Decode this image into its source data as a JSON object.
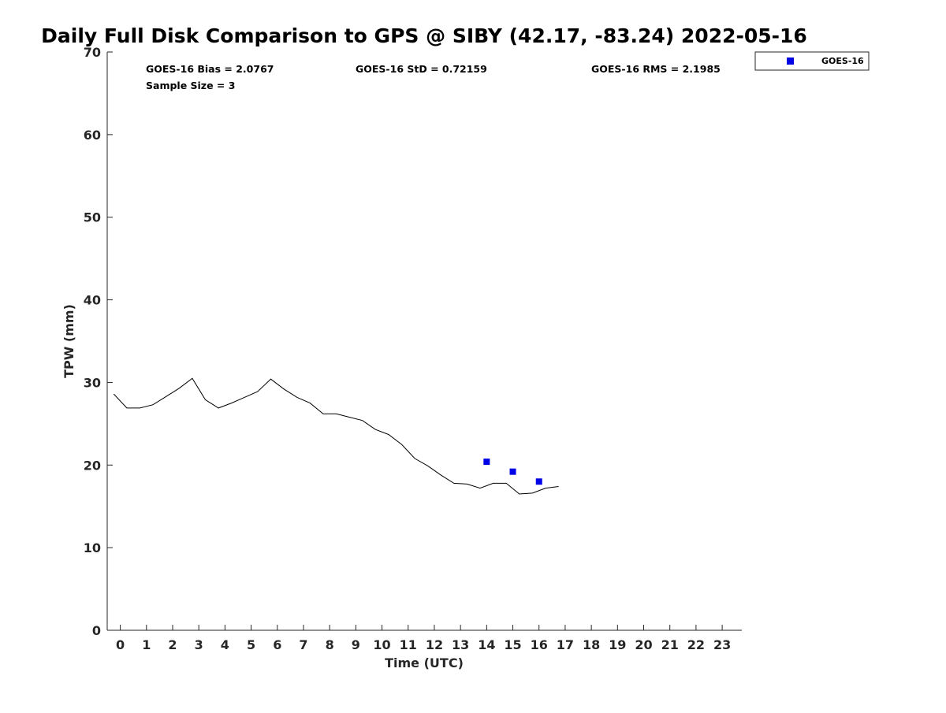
{
  "chart_data": {
    "type": "scatter",
    "title": "Daily Full Disk Comparison to GPS @ SIBY (42.17, -83.24) 2022-05-16",
    "xlabel": "Time (UTC)",
    "ylabel": "TPW (mm)",
    "xlim": [
      -0.5,
      23.75
    ],
    "ylim": [
      0,
      70
    ],
    "x_ticks": [
      0,
      1,
      2,
      3,
      4,
      5,
      6,
      7,
      8,
      9,
      10,
      11,
      12,
      13,
      14,
      15,
      16,
      17,
      18,
      19,
      20,
      21,
      22,
      23
    ],
    "y_ticks": [
      0,
      10,
      20,
      30,
      40,
      50,
      60,
      70
    ],
    "grid": false,
    "legend": {
      "placement": "top-right",
      "entries": [
        "GOES-16"
      ]
    },
    "annotations": [
      "GOES-16 Bias = 2.0767",
      "GOES-16 StD = 0.72159",
      "GOES-16 RMS = 2.1985",
      "Sample Size = 3"
    ],
    "series": [
      {
        "kind": "line",
        "color": "#000000",
        "x": [
          -0.25,
          0.25,
          0.75,
          1.25,
          1.75,
          2.25,
          2.75,
          3.25,
          3.75,
          4.25,
          4.75,
          5.25,
          5.75,
          6.25,
          6.75,
          7.25,
          7.75,
          8.25,
          8.75,
          9.25,
          9.75,
          10.25,
          10.75,
          11.25,
          11.75,
          12.25,
          12.75,
          13.25,
          13.75,
          14.25,
          14.75,
          15.25,
          15.75,
          16.25,
          16.75
        ],
        "y": [
          28.6,
          26.9,
          26.9,
          27.3,
          28.3,
          29.3,
          30.5,
          27.9,
          26.9,
          27.5,
          28.2,
          28.9,
          30.4,
          29.2,
          28.2,
          27.5,
          26.2,
          26.2,
          25.8,
          25.4,
          24.3,
          23.7,
          22.5,
          20.8,
          19.9,
          18.8,
          17.8,
          17.7,
          17.2,
          17.8,
          17.8,
          16.5,
          16.6,
          17.2,
          17.4
        ]
      },
      {
        "name": "GOES-16",
        "kind": "scatter",
        "color": "#0000e6",
        "x": [
          14,
          15,
          16
        ],
        "y": [
          20.4,
          19.2,
          18.0
        ]
      }
    ]
  }
}
